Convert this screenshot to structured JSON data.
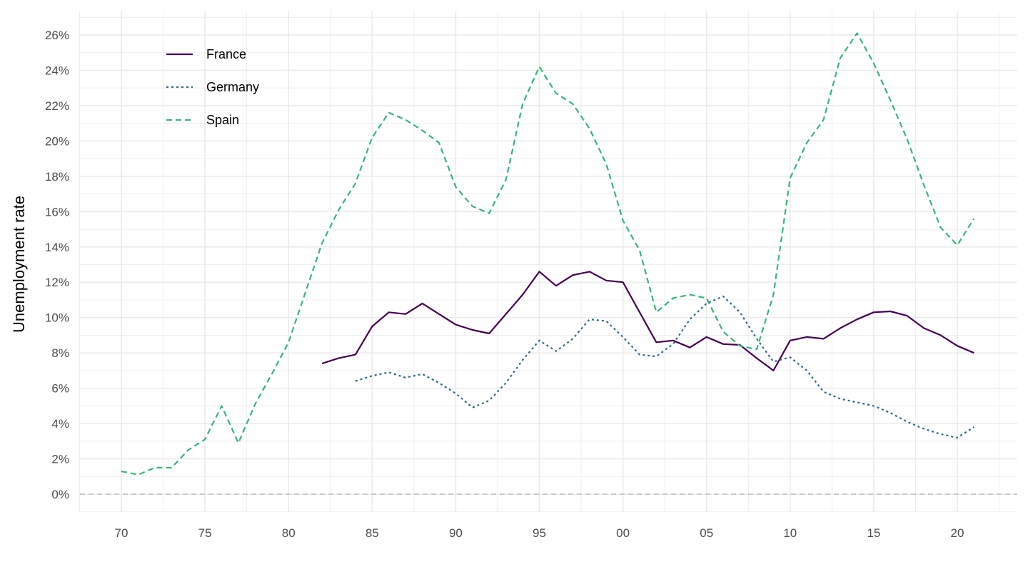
{
  "chart_data": {
    "type": "line",
    "title": "",
    "xlabel": "",
    "ylabel": "Unemployment rate",
    "xlim": [
      1967.5,
      2023.5
    ],
    "ylim": [
      -1,
      27
    ],
    "grid": true,
    "legend_position": "top-left",
    "x_ticks": [
      1970,
      1975,
      1980,
      1985,
      1990,
      1995,
      2000,
      2005,
      2010,
      2015,
      2020
    ],
    "x_tick_labels": [
      "70",
      "75",
      "80",
      "85",
      "90",
      "95",
      "00",
      "05",
      "10",
      "15",
      "20"
    ],
    "y_ticks": [
      0,
      2,
      4,
      6,
      8,
      10,
      12,
      14,
      16,
      18,
      20,
      22,
      24,
      26
    ],
    "y_tick_labels": [
      "0%",
      "2%",
      "4%",
      "6%",
      "8%",
      "10%",
      "12%",
      "14%",
      "16%",
      "18%",
      "20%",
      "22%",
      "24%",
      "26%"
    ],
    "reference_line": {
      "y": 0,
      "style": "dashed",
      "color": "#bdbdbd"
    },
    "series": [
      {
        "name": "France",
        "color": "#440154",
        "dash": "solid",
        "start_year": 1982,
        "values": [
          7.4,
          7.7,
          7.9,
          9.5,
          10.3,
          10.2,
          10.8,
          10.2,
          9.6,
          9.3,
          9.1,
          10.2,
          11.3,
          12.6,
          11.8,
          12.4,
          12.6,
          12.1,
          12.0,
          10.3,
          8.6,
          8.7,
          8.3,
          8.9,
          8.5,
          8.45,
          7.7,
          7.0,
          8.7,
          8.9,
          8.8,
          9.4,
          9.9,
          10.3,
          10.35,
          10.1,
          9.4,
          9.0,
          8.4,
          8.0
        ]
      },
      {
        "name": "Germany",
        "color": "#31688e",
        "dash": "dotted",
        "start_year": 1984,
        "values": [
          6.4,
          6.7,
          6.9,
          6.6,
          6.8,
          6.3,
          5.7,
          4.9,
          5.3,
          6.3,
          7.6,
          8.7,
          8.1,
          8.8,
          9.9,
          9.8,
          8.9,
          7.9,
          7.8,
          8.5,
          9.9,
          10.8,
          11.2,
          10.3,
          8.8,
          7.5,
          7.75,
          7.0,
          5.8,
          5.4,
          5.2,
          5.0,
          4.6,
          4.1,
          3.7,
          3.4,
          3.2,
          3.8
        ]
      },
      {
        "name": "Spain",
        "color": "#35b779",
        "dash": "dashed",
        "start_year": 1970,
        "values": [
          1.3,
          1.1,
          1.5,
          1.5,
          2.5,
          3.1,
          5.0,
          2.9,
          5.1,
          6.8,
          8.6,
          11.4,
          14.2,
          16.1,
          17.6,
          20.2,
          21.6,
          21.2,
          20.6,
          19.9,
          17.4,
          16.3,
          15.9,
          17.8,
          22.1,
          24.2,
          22.7,
          22.1,
          20.7,
          18.7,
          15.5,
          13.8,
          10.3,
          11.1,
          11.3,
          11.1,
          9.2,
          8.4,
          8.2,
          11.3,
          17.9,
          19.9,
          21.2,
          24.7,
          26.1,
          24.4,
          22.3,
          20.1,
          17.5,
          15.1,
          14.1,
          15.6
        ]
      }
    ]
  }
}
